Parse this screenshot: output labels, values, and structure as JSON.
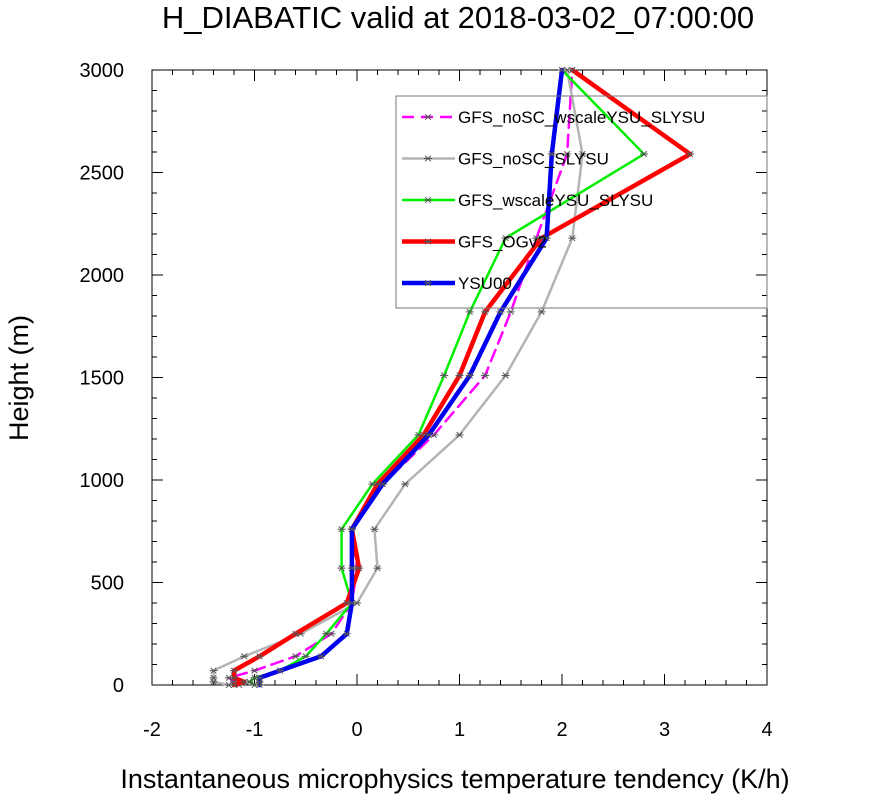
{
  "chart_data": {
    "type": "line",
    "title": "H_DIABATIC valid at 2018-03-02_07:00:00",
    "xlabel": "Instantaneous microphysics temperature tendency (K/h)",
    "ylabel": "Height (m)",
    "xlim": [
      -2,
      4
    ],
    "ylim": [
      0,
      3000
    ],
    "x_ticks": [
      -2,
      -1,
      0,
      1,
      2,
      3,
      4
    ],
    "y_ticks": [
      0,
      500,
      1000,
      1500,
      2000,
      2500,
      3000
    ],
    "x_tick_labels": [
      "-2",
      "-1",
      "0",
      "1",
      "2",
      "3",
      "4"
    ],
    "y_tick_labels": [
      "0",
      "500",
      "1000",
      "1500",
      "2000",
      "2500",
      "3000"
    ],
    "legend_position": "top-right",
    "heights": [
      0,
      15,
      35,
      70,
      140,
      250,
      400,
      570,
      760,
      980,
      1220,
      1510,
      1820,
      2180,
      2590,
      3000
    ],
    "series": [
      {
        "name": "GFS_noSC_wscaleYSU_SLYSU",
        "color": "#ff00ff",
        "dash": "dash",
        "width": 2.5,
        "x": [
          -1.15,
          -1.2,
          -1.25,
          -1.0,
          -0.6,
          -0.25,
          -0.05,
          0.0,
          -0.05,
          0.25,
          0.75,
          1.25,
          1.5,
          1.75,
          2.05,
          2.1
        ]
      },
      {
        "name": "GFS_noSC_SLYSU",
        "color": "#b4b4b4",
        "dash": "solid",
        "width": 2.5,
        "x": [
          -1.25,
          -1.4,
          -1.4,
          -1.4,
          -1.1,
          -0.55,
          0.0,
          0.2,
          0.17,
          0.47,
          1.0,
          1.45,
          1.8,
          2.1,
          2.2,
          2.05
        ]
      },
      {
        "name": "GFS_wscaleYSU_SLYSU",
        "color": "#00ee00",
        "dash": "solid",
        "width": 2.5,
        "x": [
          -1.0,
          -1.05,
          -1.0,
          -0.75,
          -0.5,
          -0.3,
          -0.05,
          -0.15,
          -0.15,
          0.15,
          0.6,
          0.85,
          1.1,
          1.45,
          2.8,
          2.0
        ]
      },
      {
        "name": "GFS_OGv2",
        "color": "#ff0000",
        "dash": "solid",
        "width": 4.5,
        "x": [
          -1.2,
          -1.1,
          -1.2,
          -1.2,
          -0.95,
          -0.6,
          -0.1,
          0.02,
          -0.05,
          0.2,
          0.65,
          1.0,
          1.25,
          1.8,
          3.25,
          2.1
        ]
      },
      {
        "name": "YSU00",
        "color": "#0000ee",
        "dash": "solid",
        "width": 4.5,
        "x": [
          -0.95,
          -0.95,
          -0.95,
          -0.75,
          -0.35,
          -0.1,
          -0.05,
          -0.05,
          -0.05,
          0.25,
          0.7,
          1.1,
          1.4,
          1.85,
          1.9,
          2.0
        ]
      }
    ]
  }
}
